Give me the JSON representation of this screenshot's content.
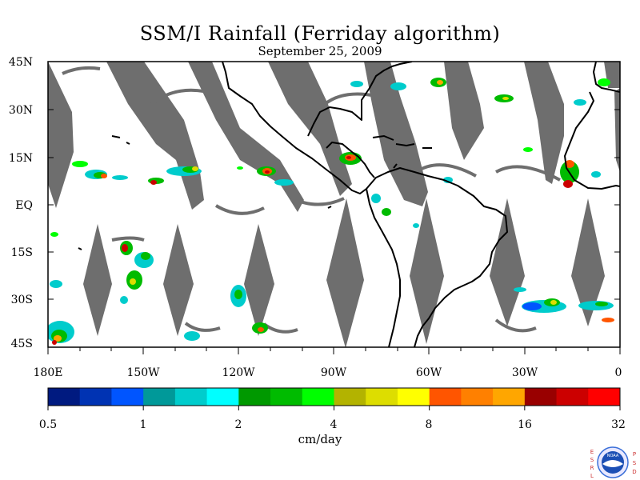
{
  "title": "SSM/I Rainfall (Ferriday algorithm)",
  "subtitle": "September 25, 2009",
  "lat_labels": [
    "45N",
    "30N",
    "15N",
    "EQ",
    "15S",
    "30S",
    "45S"
  ],
  "lon_labels": [
    "180E",
    "150W",
    "120W",
    "90W",
    "60W",
    "30W",
    "0"
  ],
  "colorbar": {
    "unit": "cm/day",
    "tick_labels": [
      "0.5",
      "1",
      "2",
      "4",
      "8",
      "16",
      "32"
    ],
    "colors": [
      "#001a80",
      "#0033b3",
      "#0055ff",
      "#009999",
      "#00cccc",
      "#00ffff",
      "#009900",
      "#00bb00",
      "#00ff00",
      "#b3b300",
      "#dddd00",
      "#ffff00",
      "#ff5500",
      "#ff8000",
      "#ffa600",
      "#990000",
      "#cc0000",
      "#ff0000"
    ]
  },
  "logo": {
    "left_letters": "ESRL",
    "right_letters": "PSD",
    "center_text": "NOAA"
  },
  "colors": {
    "swath_gap": "#6e6e6e",
    "coastline": "#000000",
    "background": "#ffffff"
  }
}
